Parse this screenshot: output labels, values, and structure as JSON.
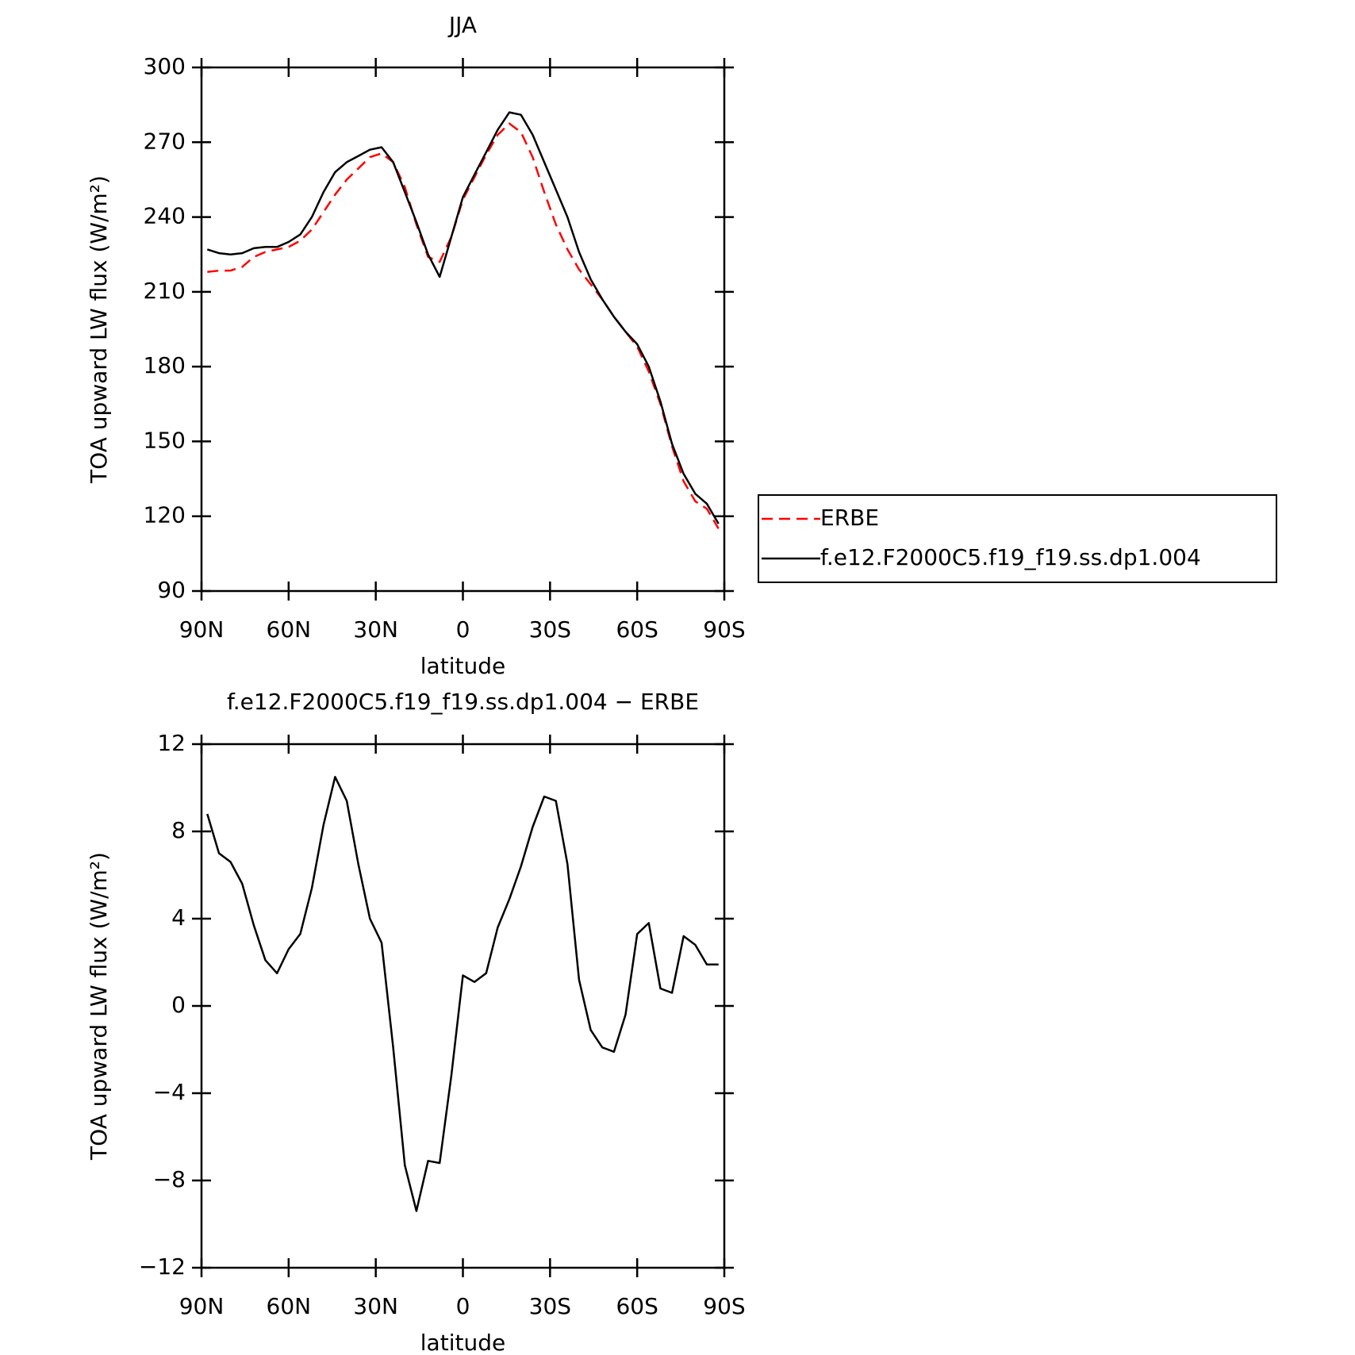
{
  "chart_data": [
    {
      "type": "line",
      "title": "JJA",
      "xlabel": "latitude",
      "ylabel": "TOA upward LW flux (W/m²)",
      "x": [
        88,
        84,
        80,
        76,
        72,
        68,
        64,
        60,
        56,
        52,
        48,
        44,
        40,
        36,
        32,
        28,
        24,
        20,
        16,
        12,
        8,
        4,
        0,
        -4,
        -8,
        -12,
        -16,
        -20,
        -24,
        -28,
        -32,
        -36,
        -40,
        -44,
        -48,
        -52,
        -56,
        -60,
        -64,
        -68,
        -72,
        -76,
        -80,
        -84,
        -88
      ],
      "xlim": [
        90,
        -90
      ],
      "xticks": [
        {
          "value": 90,
          "label": "90N"
        },
        {
          "value": 60,
          "label": "60N"
        },
        {
          "value": 30,
          "label": "30N"
        },
        0,
        {
          "value": -30,
          "label": "30S"
        },
        {
          "value": -60,
          "label": "60S"
        },
        {
          "value": -90,
          "label": "90S"
        }
      ],
      "ylim": [
        90,
        300
      ],
      "yticks": [
        90,
        120,
        150,
        180,
        210,
        240,
        270,
        300
      ],
      "legend": "right",
      "series": [
        {
          "name": "ERBE",
          "color": "#ff0000",
          "line_style": "dashed",
          "values": [
            218,
            218.5,
            218.5,
            220,
            224,
            226,
            227,
            228,
            230.5,
            235,
            242,
            249,
            255,
            259.5,
            264,
            265.5,
            262,
            252,
            237,
            224,
            222,
            232,
            247,
            256,
            265,
            273,
            277.5,
            274,
            264,
            250,
            237,
            227,
            219,
            213,
            207,
            200,
            194,
            188,
            178,
            165,
            148,
            134,
            126,
            123,
            115
          ]
        },
        {
          "name": "f.e12.F2000C5.f19_f19.ss.dp1.004",
          "color": "#000000",
          "line_style": "solid",
          "values": [
            227,
            225.5,
            225,
            225.5,
            227.5,
            228,
            228,
            230,
            233,
            240,
            250,
            258,
            262,
            264.5,
            267,
            268,
            262,
            250,
            238,
            225,
            216,
            232,
            248,
            257,
            266,
            275,
            282,
            281,
            273,
            262,
            251,
            240,
            226,
            215,
            207,
            200,
            194,
            189,
            180,
            166,
            149,
            137,
            129,
            125,
            117
          ]
        }
      ]
    },
    {
      "type": "line",
      "title": "f.e12.F2000C5.f19_f19.ss.dp1.004 − ERBE",
      "xlabel": "latitude",
      "ylabel": "TOA upward LW flux (W/m²)",
      "x": [
        88,
        84,
        80,
        76,
        72,
        68,
        64,
        60,
        56,
        52,
        48,
        44,
        40,
        36,
        32,
        28,
        24,
        20,
        16,
        12,
        8,
        4,
        0,
        -4,
        -8,
        -12,
        -16,
        -20,
        -24,
        -28,
        -32,
        -36,
        -40,
        -44,
        -48,
        -52,
        -56,
        -60,
        -64,
        -68,
        -72,
        -76,
        -80,
        -84,
        -88
      ],
      "xlim": [
        90,
        -90
      ],
      "xticks": [
        {
          "value": 90,
          "label": "90N"
        },
        {
          "value": 60,
          "label": "60N"
        },
        {
          "value": 30,
          "label": "30N"
        },
        0,
        {
          "value": -30,
          "label": "30S"
        },
        {
          "value": -60,
          "label": "60S"
        },
        {
          "value": -90,
          "label": "90S"
        }
      ],
      "ylim": [
        -12,
        12
      ],
      "yticks": [
        {
          "value": -12,
          "label": "−12"
        },
        {
          "value": -8,
          "label": "−8"
        },
        {
          "value": -4,
          "label": "−4"
        },
        0,
        4,
        8,
        12
      ],
      "series": [
        {
          "color": "#000000",
          "line_style": "solid",
          "values": [
            8.8,
            7.0,
            6.6,
            5.6,
            3.7,
            2.1,
            1.5,
            2.6,
            3.3,
            5.4,
            8.3,
            10.5,
            9.4,
            6.5,
            4.0,
            2.9,
            -1.9,
            -7.3,
            -9.4,
            -7.1,
            -7.2,
            -3.2,
            1.4,
            1.1,
            1.5,
            3.6,
            4.9,
            6.4,
            8.2,
            9.6,
            9.4,
            6.5,
            1.2,
            -1.1,
            -1.9,
            -2.1,
            -0.4,
            3.3,
            3.8,
            0.8,
            0.6,
            3.2,
            2.8,
            1.9,
            1.9
          ]
        }
      ]
    }
  ]
}
